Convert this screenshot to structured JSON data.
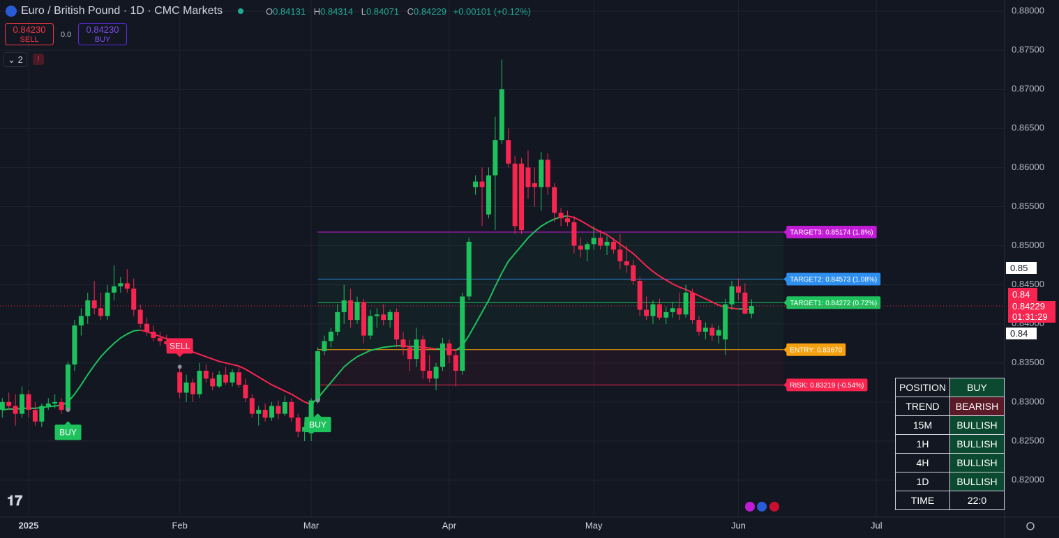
{
  "header": {
    "title": "Euro / British Pound · 1D · CMC Markets",
    "ohlc_letters": [
      "O",
      "H",
      "L",
      "C"
    ],
    "change": "+0.00101 (+0.12%)",
    "sell_price": "0.84230",
    "sell": "SELL",
    "spread": "0.0",
    "buy_price": "0.84230",
    "buy": "BUY",
    "indicator_count": "2",
    "alert": "!"
  },
  "price_scale": {
    "badges": [
      "0.85",
      "0.84"
    ],
    "last_short": "0.84",
    "countdown": "01:31:29"
  },
  "table": {
    "rows": [
      [
        "POSITION",
        "BUY"
      ],
      [
        "TREND",
        "BEARISH"
      ],
      [
        "15M",
        "BULLISH"
      ],
      [
        "1H",
        "BULLISH"
      ],
      [
        "4H",
        "BULLISH"
      ],
      [
        "1D",
        "BULLISH"
      ],
      [
        "TIME",
        "22:0"
      ]
    ],
    "cell_colors": [
      "#0b4a30",
      "#5a1a28",
      "#0b4a30",
      "#0b4a30",
      "#0b4a30",
      "#0b4a30",
      "#131722"
    ]
  },
  "chart_data": {
    "type": "candlestick",
    "up_color": "#1ec25c",
    "down_color": "#f7254f",
    "xlim": [
      -0.35,
      152.5
    ],
    "xticks": [
      {
        "value": 4,
        "label": "2025"
      },
      {
        "value": 27,
        "label": "Feb"
      },
      {
        "value": 47,
        "label": "Mar"
      },
      {
        "value": 68,
        "label": "Apr"
      },
      {
        "value": 90,
        "label": "May"
      },
      {
        "value": 112,
        "label": "Jun"
      },
      {
        "value": 133,
        "label": "Jul"
      }
    ],
    "ylim": [
      0.81528,
      0.88143
    ],
    "yticks": [
      {
        "value": 0.82,
        "label": "0.82000"
      },
      {
        "value": 0.825,
        "label": "0.82500"
      },
      {
        "value": 0.83,
        "label": "0.83000"
      },
      {
        "value": 0.835,
        "label": "0.83500"
      },
      {
        "value": 0.84,
        "label": "0.84000"
      },
      {
        "value": 0.845,
        "label": "0.84500"
      },
      {
        "value": 0.85,
        "label": "0.85000"
      },
      {
        "value": 0.855,
        "label": "0.85500"
      },
      {
        "value": 0.86,
        "label": "0.86000"
      },
      {
        "value": 0.865,
        "label": "0.86500"
      },
      {
        "value": 0.87,
        "label": "0.87000"
      },
      {
        "value": 0.875,
        "label": "0.87500"
      },
      {
        "value": 0.88,
        "label": "0.88000"
      }
    ],
    "grid": true,
    "ohlc": [
      [
        0.829,
        0.8305,
        0.828,
        0.83
      ],
      [
        0.83,
        0.8312,
        0.829,
        0.8295
      ],
      [
        0.8295,
        0.831,
        0.827,
        0.8285
      ],
      [
        0.8285,
        0.832,
        0.828,
        0.831
      ],
      [
        0.831,
        0.8315,
        0.828,
        0.829
      ],
      [
        0.829,
        0.83,
        0.827,
        0.8275
      ],
      [
        0.8275,
        0.8298,
        0.8268,
        0.8295
      ],
      [
        0.8295,
        0.8305,
        0.829,
        0.8298
      ],
      [
        0.8298,
        0.831,
        0.8292,
        0.83
      ],
      [
        0.83,
        0.8305,
        0.8285,
        0.829
      ],
      [
        0.829,
        0.8352,
        0.8288,
        0.8348
      ],
      [
        0.8348,
        0.8405,
        0.834,
        0.8398
      ],
      [
        0.8398,
        0.842,
        0.8385,
        0.841
      ],
      [
        0.841,
        0.844,
        0.84,
        0.843
      ],
      [
        0.843,
        0.8455,
        0.8412,
        0.842
      ],
      [
        0.842,
        0.844,
        0.8405,
        0.841
      ],
      [
        0.841,
        0.845,
        0.8405,
        0.844
      ],
      [
        0.844,
        0.8475,
        0.843,
        0.8448
      ],
      [
        0.8448,
        0.846,
        0.844,
        0.8452
      ],
      [
        0.8452,
        0.847,
        0.844,
        0.8445
      ],
      [
        0.8445,
        0.8458,
        0.841,
        0.8418
      ],
      [
        0.8418,
        0.8425,
        0.8395,
        0.84
      ],
      [
        0.84,
        0.8408,
        0.8385,
        0.839
      ],
      [
        0.839,
        0.8398,
        0.8378,
        0.8382
      ],
      [
        0.8382,
        0.839,
        0.8372,
        0.8378
      ],
      [
        0.8378,
        0.8386,
        0.837,
        0.8374
      ],
      [
        0.8374,
        0.838,
        0.8365,
        0.8368
      ],
      [
        0.8338,
        0.8345,
        0.8305,
        0.8312
      ],
      [
        0.8312,
        0.8335,
        0.83,
        0.8325
      ],
      [
        0.8325,
        0.833,
        0.83,
        0.831
      ],
      [
        0.831,
        0.835,
        0.8305,
        0.834
      ],
      [
        0.834,
        0.8348,
        0.8325,
        0.833
      ],
      [
        0.833,
        0.8338,
        0.8315,
        0.832
      ],
      [
        0.832,
        0.834,
        0.8318,
        0.8335
      ],
      [
        0.8335,
        0.8345,
        0.8322,
        0.8325
      ],
      [
        0.8325,
        0.8342,
        0.832,
        0.8338
      ],
      [
        0.8338,
        0.8345,
        0.8318,
        0.8322
      ],
      [
        0.8322,
        0.833,
        0.83,
        0.8305
      ],
      [
        0.8305,
        0.831,
        0.828,
        0.8285
      ],
      [
        0.8285,
        0.8295,
        0.827,
        0.829
      ],
      [
        0.829,
        0.8298,
        0.8275,
        0.828
      ],
      [
        0.828,
        0.83,
        0.8276,
        0.8295
      ],
      [
        0.8295,
        0.8302,
        0.8278,
        0.8285
      ],
      [
        0.8285,
        0.8308,
        0.8282,
        0.83
      ],
      [
        0.83,
        0.8305,
        0.8275,
        0.828
      ],
      [
        0.828,
        0.8285,
        0.8255,
        0.8262
      ],
      [
        0.8262,
        0.8275,
        0.825,
        0.8268
      ],
      [
        0.826,
        0.8305,
        0.825,
        0.8302
      ],
      [
        0.8302,
        0.837,
        0.8298,
        0.8365
      ],
      [
        0.8365,
        0.8385,
        0.836,
        0.8378
      ],
      [
        0.8378,
        0.8395,
        0.837,
        0.839
      ],
      [
        0.839,
        0.8425,
        0.8385,
        0.8415
      ],
      [
        0.8415,
        0.845,
        0.84,
        0.843
      ],
      [
        0.843,
        0.8445,
        0.8395,
        0.8405
      ],
      [
        0.8405,
        0.8435,
        0.84,
        0.8428
      ],
      [
        0.8428,
        0.8432,
        0.8375,
        0.8385
      ],
      [
        0.8385,
        0.8418,
        0.838,
        0.841
      ],
      [
        0.841,
        0.842,
        0.8395,
        0.8412
      ],
      [
        0.8412,
        0.8425,
        0.8398,
        0.8405
      ],
      [
        0.8405,
        0.8418,
        0.8395,
        0.8415
      ],
      [
        0.8415,
        0.842,
        0.837,
        0.838
      ],
      [
        0.838,
        0.839,
        0.836,
        0.837
      ],
      [
        0.837,
        0.838,
        0.834,
        0.8355
      ],
      [
        0.8355,
        0.8395,
        0.8345,
        0.838
      ],
      [
        0.838,
        0.8385,
        0.833,
        0.834
      ],
      [
        0.834,
        0.836,
        0.8325,
        0.833
      ],
      [
        0.833,
        0.835,
        0.8315,
        0.8345
      ],
      [
        0.8345,
        0.8382,
        0.834,
        0.8375
      ],
      [
        0.8375,
        0.838,
        0.835,
        0.836
      ],
      [
        0.836,
        0.8368,
        0.832,
        0.834
      ],
      [
        0.834,
        0.844,
        0.8335,
        0.8435
      ],
      [
        0.8435,
        0.851,
        0.843,
        0.8505
      ],
      [
        0.8575,
        0.859,
        0.8565,
        0.8582
      ],
      [
        0.8582,
        0.86,
        0.8525,
        0.8575
      ],
      [
        0.854,
        0.86,
        0.8535,
        0.859
      ],
      [
        0.859,
        0.8665,
        0.852,
        0.8635
      ],
      [
        0.8635,
        0.8738,
        0.863,
        0.87
      ],
      [
        0.8635,
        0.865,
        0.86,
        0.8605
      ],
      [
        0.8605,
        0.8615,
        0.8515,
        0.8525
      ],
      [
        0.8605,
        0.8612,
        0.8515,
        0.852
      ],
      [
        0.86,
        0.8622,
        0.856,
        0.8575
      ],
      [
        0.858,
        0.86,
        0.855,
        0.8575
      ],
      [
        0.8575,
        0.862,
        0.8545,
        0.861
      ],
      [
        0.861,
        0.8618,
        0.8565,
        0.8575
      ],
      [
        0.8575,
        0.858,
        0.853,
        0.8542
      ],
      [
        0.8542,
        0.8548,
        0.8525,
        0.8535
      ],
      [
        0.8535,
        0.8545,
        0.8525,
        0.853
      ],
      [
        0.853,
        0.8538,
        0.849,
        0.85
      ],
      [
        0.85,
        0.851,
        0.8485,
        0.8495
      ],
      [
        0.8495,
        0.8505,
        0.848,
        0.8502
      ],
      [
        0.8502,
        0.8525,
        0.8495,
        0.851
      ],
      [
        0.851,
        0.852,
        0.8495,
        0.85
      ],
      [
        0.85,
        0.8512,
        0.8488,
        0.8505
      ],
      [
        0.8505,
        0.851,
        0.849,
        0.8495
      ],
      [
        0.8495,
        0.8515,
        0.847,
        0.848
      ],
      [
        0.848,
        0.85,
        0.8465,
        0.8475
      ],
      [
        0.8475,
        0.8482,
        0.845,
        0.8455
      ],
      [
        0.8455,
        0.846,
        0.841,
        0.8418
      ],
      [
        0.8418,
        0.8435,
        0.8405,
        0.841
      ],
      [
        0.841,
        0.843,
        0.84,
        0.8425
      ],
      [
        0.8425,
        0.8432,
        0.8405,
        0.8408
      ],
      [
        0.8408,
        0.8422,
        0.84,
        0.8415
      ],
      [
        0.8415,
        0.8428,
        0.8408,
        0.842
      ],
      [
        0.842,
        0.844,
        0.8405,
        0.8412
      ],
      [
        0.8412,
        0.845,
        0.8408,
        0.844
      ],
      [
        0.844,
        0.8445,
        0.84,
        0.8405
      ],
      [
        0.8405,
        0.841,
        0.8385,
        0.839
      ],
      [
        0.839,
        0.8402,
        0.838,
        0.8395
      ],
      [
        0.8395,
        0.84,
        0.8378,
        0.8385
      ],
      [
        0.8385,
        0.8398,
        0.8375,
        0.8392
      ],
      [
        0.838,
        0.8432,
        0.836,
        0.8425
      ],
      [
        0.8425,
        0.8455,
        0.8418,
        0.8448
      ],
      [
        0.8448,
        0.8458,
        0.843,
        0.844
      ],
      [
        0.844,
        0.8452,
        0.8418,
        0.8413
      ],
      [
        0.84131,
        0.84314,
        0.84071,
        0.84229
      ]
    ],
    "ma": {
      "up_color": "#1ec25c",
      "down_color": "#f7254f",
      "values": [
        0.829,
        0.8291,
        0.8291,
        0.8292,
        0.8292,
        0.8292,
        0.8293,
        0.8294,
        0.8295,
        0.8296,
        0.83,
        0.831,
        0.8322,
        0.8335,
        0.8347,
        0.8358,
        0.8367,
        0.8375,
        0.8382,
        0.8387,
        0.8391,
        0.8392,
        0.839,
        0.8387,
        0.8384,
        0.8381,
        0.8378,
        0.8373,
        0.8368,
        0.8364,
        0.8361,
        0.8358,
        0.8355,
        0.8352,
        0.835,
        0.8348,
        0.8346,
        0.8342,
        0.8337,
        0.8332,
        0.8327,
        0.8322,
        0.8318,
        0.8314,
        0.831,
        0.8305,
        0.83,
        0.8297,
        0.8305,
        0.8315,
        0.8325,
        0.8335,
        0.8345,
        0.8352,
        0.8358,
        0.8362,
        0.8366,
        0.8368,
        0.837,
        0.8371,
        0.8372,
        0.8372,
        0.8371,
        0.8371,
        0.837,
        0.8369,
        0.8368,
        0.8368,
        0.8367,
        0.8366,
        0.8372,
        0.8385,
        0.84,
        0.8415,
        0.843,
        0.8448,
        0.8465,
        0.848,
        0.849,
        0.85,
        0.851,
        0.8518,
        0.8525,
        0.853,
        0.8534,
        0.8537,
        0.8538,
        0.8536,
        0.8532,
        0.8527,
        0.8522,
        0.8518,
        0.8514,
        0.8508,
        0.8502,
        0.8496,
        0.849,
        0.8482,
        0.8474,
        0.8467,
        0.8461,
        0.8456,
        0.8451,
        0.8447,
        0.8444,
        0.844,
        0.8436,
        0.8432,
        0.8428,
        0.8424,
        0.8421,
        0.842,
        0.8419,
        0.8419,
        0.8418
      ]
    },
    "signals": [
      {
        "index": 10,
        "label": "BUY",
        "color": "#1ec25c"
      },
      {
        "index": 27,
        "label": "SELL",
        "color": "#f7254f"
      },
      {
        "index": 48,
        "label": "BUY",
        "color": "#1ec25c"
      }
    ],
    "levels": [
      {
        "value": 0.85174,
        "label": "TARGET3: 0.85174 (1.8%)",
        "color": "#c21bd6"
      },
      {
        "value": 0.84573,
        "label": "TARGET2: 0.84573 (1.08%)",
        "color": "#2f8ff0"
      },
      {
        "value": 0.84272,
        "label": "TARGET1: 0.84272 (0.72%)",
        "color": "#1ec25c"
      },
      {
        "value": 0.8367,
        "label": "ENTRY: 0.83670",
        "color": "#f5a00f"
      },
      {
        "value": 0.83219,
        "label": "RISK: 0.83219 (-0.54%)",
        "color": "#f7254f"
      }
    ]
  }
}
